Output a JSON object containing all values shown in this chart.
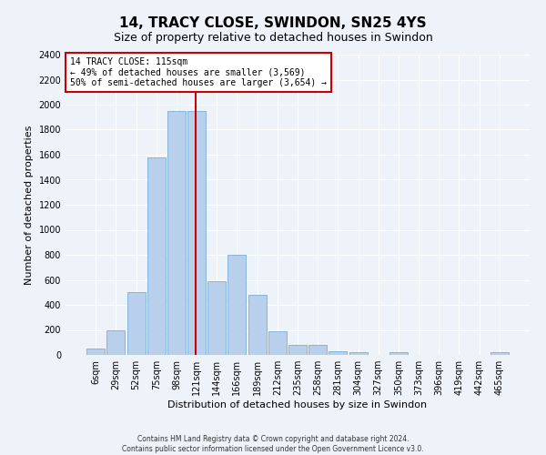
{
  "title": "14, TRACY CLOSE, SWINDON, SN25 4YS",
  "subtitle": "Size of property relative to detached houses in Swindon",
  "xlabel": "Distribution of detached houses by size in Swindon",
  "ylabel": "Number of detached properties",
  "footer_line1": "Contains HM Land Registry data © Crown copyright and database right 2024.",
  "footer_line2": "Contains public sector information licensed under the Open Government Licence v3.0.",
  "categories": [
    "6sqm",
    "29sqm",
    "52sqm",
    "75sqm",
    "98sqm",
    "121sqm",
    "144sqm",
    "166sqm",
    "189sqm",
    "212sqm",
    "235sqm",
    "258sqm",
    "281sqm",
    "304sqm",
    "327sqm",
    "350sqm",
    "373sqm",
    "396sqm",
    "419sqm",
    "442sqm",
    "465sqm"
  ],
  "values": [
    50,
    200,
    500,
    1580,
    1950,
    1950,
    590,
    800,
    480,
    190,
    80,
    80,
    30,
    20,
    0,
    20,
    0,
    0,
    0,
    0,
    20
  ],
  "bar_color": "#b8d0eb",
  "bar_edgecolor": "#7aadd4",
  "vline_x": 4.95,
  "vline_color": "#cc0000",
  "annotation_text": "14 TRACY CLOSE: 115sqm\n← 49% of detached houses are smaller (3,569)\n50% of semi-detached houses are larger (3,654) →",
  "annotation_box_color": "#ffffff",
  "annotation_box_edgecolor": "#cc0000",
  "ylim": [
    0,
    2400
  ],
  "yticks": [
    0,
    200,
    400,
    600,
    800,
    1000,
    1200,
    1400,
    1600,
    1800,
    2000,
    2200,
    2400
  ],
  "background_color": "#eef2f9",
  "grid_color": "#ffffff",
  "title_fontsize": 11,
  "subtitle_fontsize": 9,
  "tick_fontsize": 7,
  "label_fontsize": 8,
  "footer_fontsize": 5.5
}
